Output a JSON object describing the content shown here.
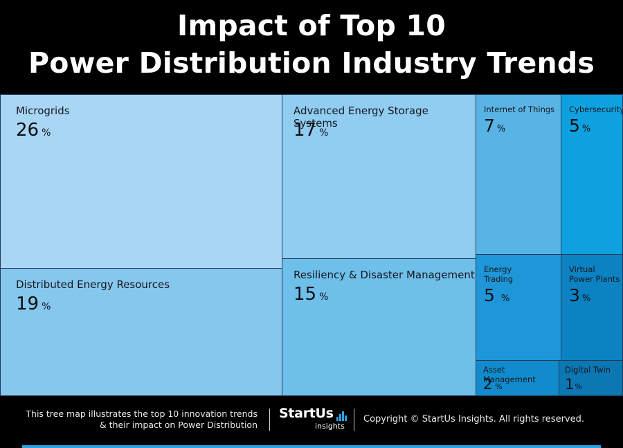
{
  "title": {
    "line1": "Impact of Top 10",
    "line2": "Power Distribution Industry Trends"
  },
  "chart_data": {
    "type": "treemap",
    "title": "Impact of Top 10 Power Distribution Industry Trends",
    "unit": "%",
    "items": [
      {
        "label": "Microgrids",
        "value": 26,
        "color": "#a9d6f5"
      },
      {
        "label": "Distributed Energy Resources",
        "value": 19,
        "color": "#86c7ee"
      },
      {
        "label": "Advanced Energy Storage Systems",
        "value": 17,
        "color": "#91ccf1"
      },
      {
        "label": "Resiliency & Disaster Management",
        "value": 15,
        "color": "#6fbfeb"
      },
      {
        "label": "Internet of Things",
        "value": 7,
        "color": "#59b4e6"
      },
      {
        "label": "Cybersecurity",
        "value": 5,
        "color": "#0fa1df"
      },
      {
        "label": "Energy Trading",
        "value": 5,
        "color": "#1e96d8"
      },
      {
        "label": "Virtual Power Plants",
        "value": 3,
        "color": "#0c82c3"
      },
      {
        "label": "Asset Management",
        "value": 2,
        "color": "#118bcd"
      },
      {
        "label": "Digital Twin",
        "value": 1,
        "color": "#0b77b3"
      }
    ]
  },
  "labels": {
    "microgrids": "Microgrids",
    "der": "Distributed Energy Resources",
    "aess": "Advanced Energy Storage Systems",
    "rdm": "Resiliency & Disaster Management",
    "iot": "Internet of Things",
    "cyber": "Cybersecurity",
    "trading_l1": "Energy",
    "trading_l2": "Trading",
    "vpp_l1": "Virtual",
    "vpp_l2": "Power Plants",
    "asset": "Asset Management",
    "twin": "Digital Twin",
    "pct": "%"
  },
  "values": {
    "microgrids": "26",
    "der": "19",
    "aess": "17",
    "rdm": "15",
    "iot": "7",
    "cyber": "5",
    "trading": "5",
    "vpp": "3",
    "asset": "2",
    "twin": "1"
  },
  "footer": {
    "desc_line1": "This tree map illustrates the top 10 innovation trends",
    "desc_line2": "& their impact on Power Distribution",
    "logo_name": "StartUs",
    "logo_sub": "insights",
    "copyright": "Copyright © StartUs Insights. All rights reserved."
  }
}
